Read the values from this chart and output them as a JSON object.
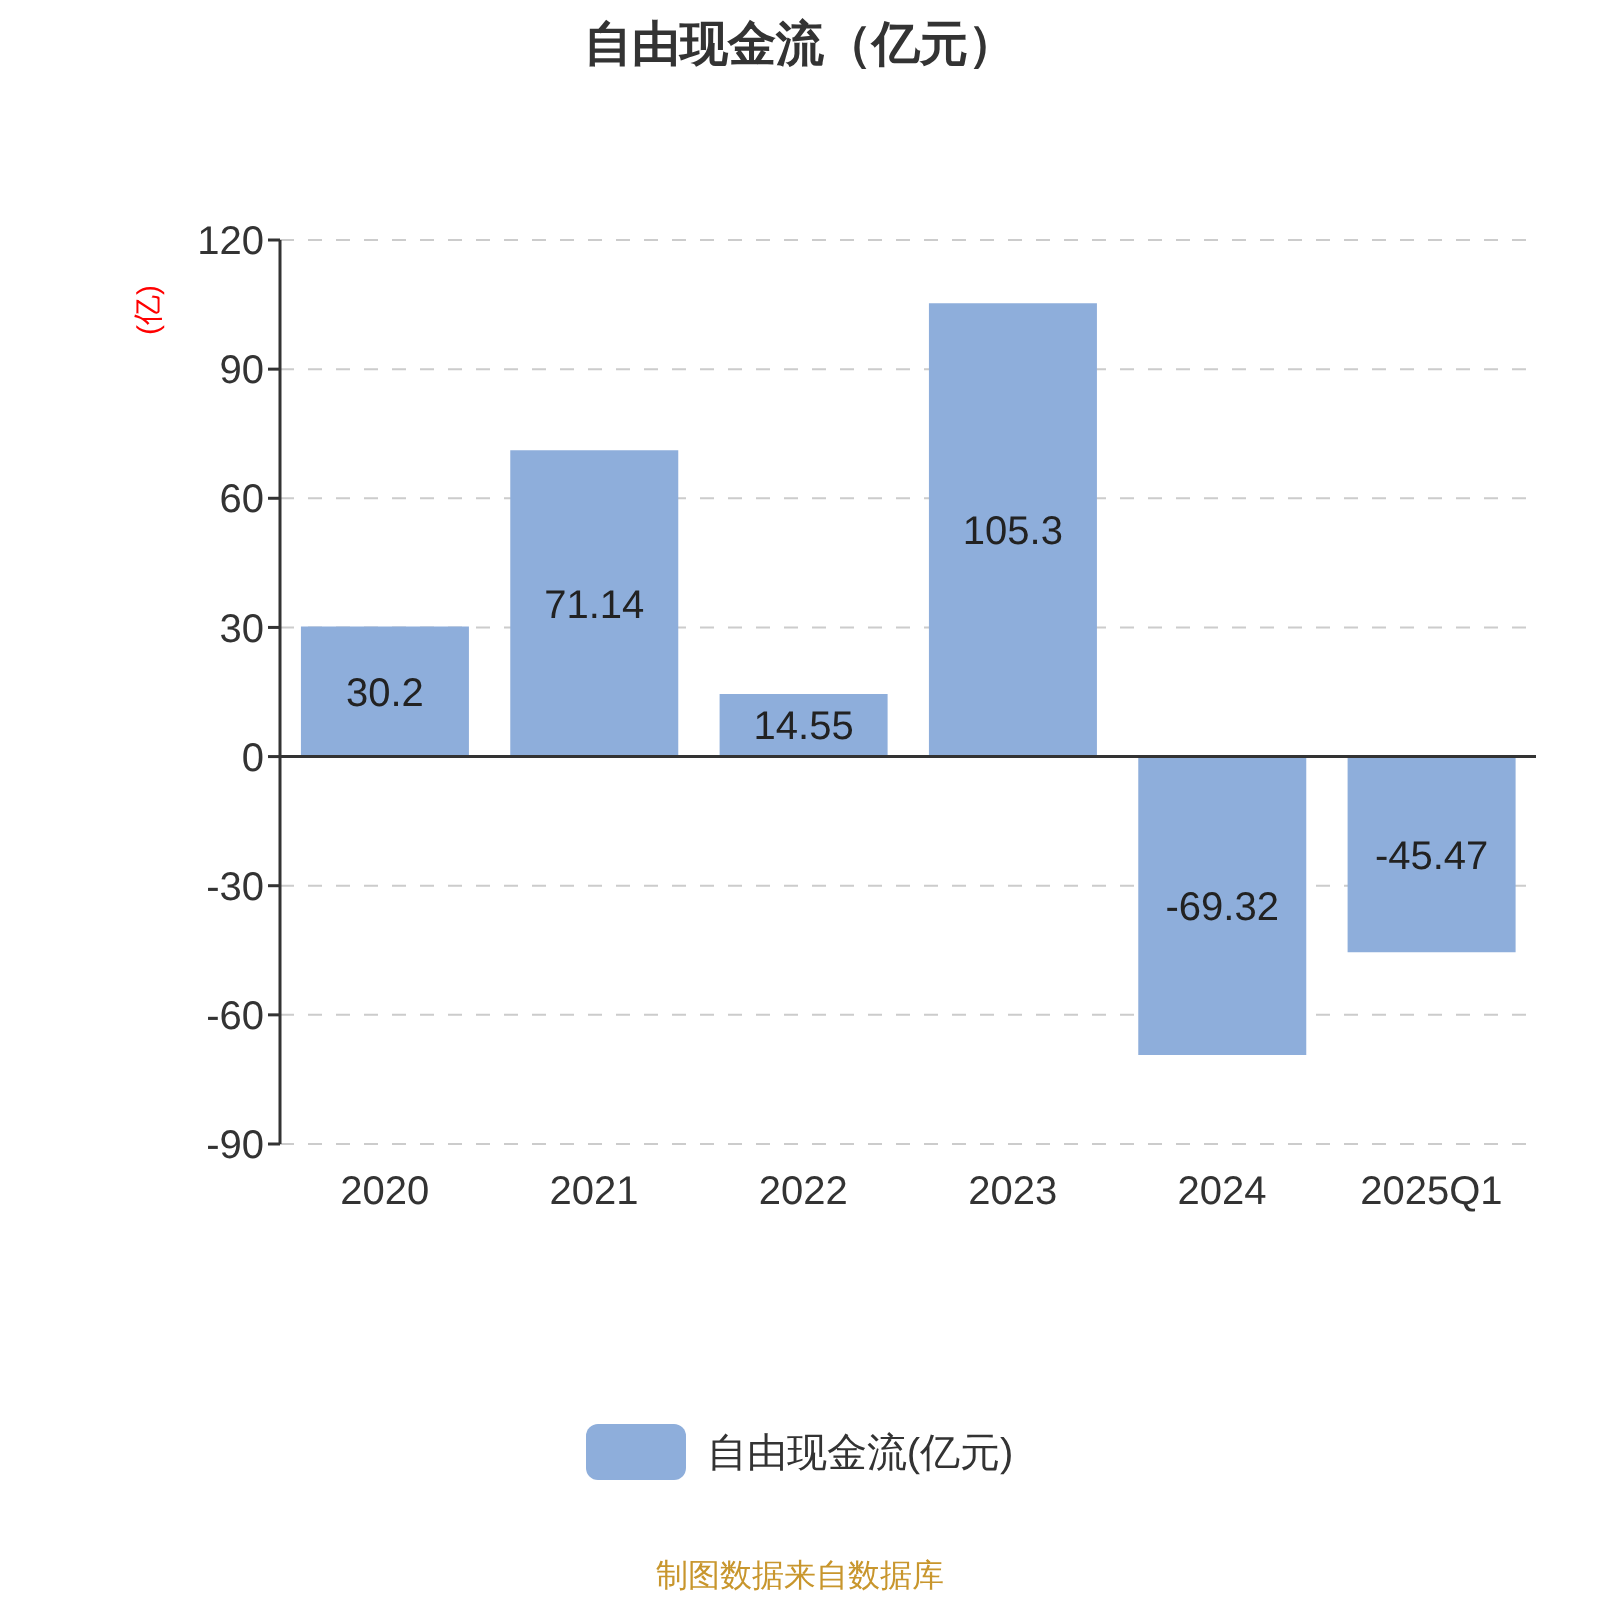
{
  "chart_data": {
    "type": "bar",
    "title": "自由现金流（亿元）",
    "ylabel": "(亿)",
    "categories": [
      "2020",
      "2021",
      "2022",
      "2023",
      "2024",
      "2025Q1"
    ],
    "series": [
      {
        "name": "自由现金流(亿元)",
        "color": "#8eaedb",
        "values": [
          30.2,
          71.14,
          14.55,
          105.3,
          -69.32,
          -45.47
        ]
      }
    ],
    "ylim": [
      -90,
      120
    ],
    "yticks": [
      -90,
      -60,
      -30,
      0,
      30,
      60,
      90,
      120
    ],
    "grid": "y",
    "legend": "bottom",
    "data_labels": true,
    "annotations": [
      "制图数据来自数据库"
    ]
  }
}
